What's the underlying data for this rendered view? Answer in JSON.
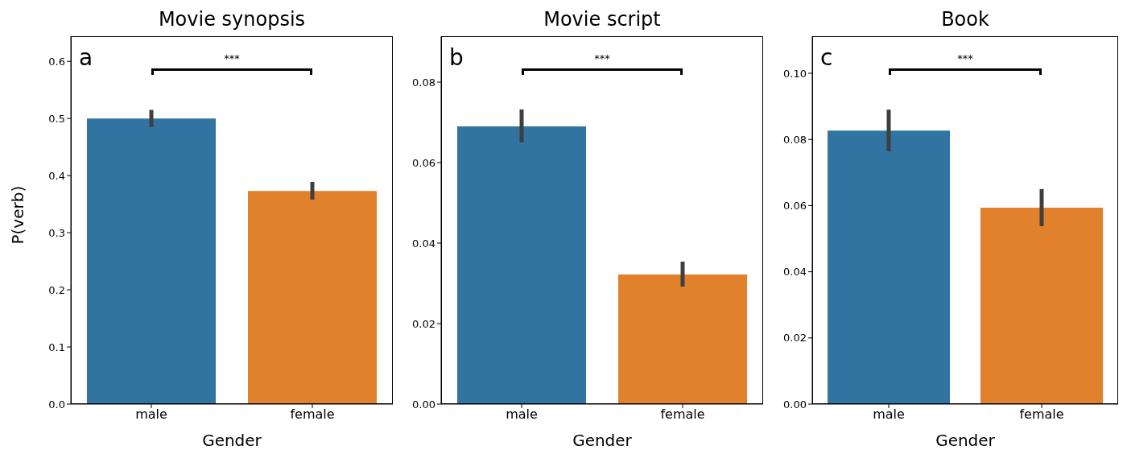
{
  "chart_data": [
    {
      "type": "bar",
      "title": "Movie synopsis",
      "xlabel": "Gender",
      "ylabel": "P(verb)",
      "categories": [
        "male",
        "female"
      ],
      "values": [
        0.5,
        0.373
      ],
      "colors": [
        "#3274a1",
        "#e1812c"
      ],
      "errors": [
        [
          0.485,
          0.515
        ],
        [
          0.358,
          0.389
        ]
      ],
      "ylim": [
        0,
        0.644
      ],
      "yticks": [
        {
          "value": 0,
          "label": "0.0"
        },
        {
          "value": 0.1,
          "label": "0.1"
        },
        {
          "value": 0.2,
          "label": "0.2"
        },
        {
          "value": 0.3,
          "label": "0.3"
        },
        {
          "value": 0.4,
          "label": "0.4"
        },
        {
          "value": 0.5,
          "label": "0.5"
        },
        {
          "value": 0.6,
          "label": "0.6"
        }
      ],
      "annotations": [
        "a",
        "***"
      ],
      "grid": false,
      "legend": false
    },
    {
      "type": "bar",
      "title": "Movie script",
      "xlabel": "Gender",
      "categories": [
        "male",
        "female"
      ],
      "values": [
        0.069,
        0.0322
      ],
      "colors": [
        "#3274a1",
        "#e1812c"
      ],
      "errors": [
        [
          0.065,
          0.0732
        ],
        [
          0.0292,
          0.0354
        ]
      ],
      "ylim": [
        0,
        0.0914
      ],
      "yticks": [
        {
          "value": 0,
          "label": "0.00"
        },
        {
          "value": 0.02,
          "label": "0.02"
        },
        {
          "value": 0.04,
          "label": "0.04"
        },
        {
          "value": 0.06,
          "label": "0.06"
        },
        {
          "value": 0.08,
          "label": "0.08"
        }
      ],
      "annotations": [
        "b",
        "***"
      ],
      "grid": false,
      "legend": false
    },
    {
      "type": "bar",
      "title": "Book",
      "xlabel": "Gender",
      "categories": [
        "male",
        "female"
      ],
      "values": [
        0.0827,
        0.0594
      ],
      "colors": [
        "#3274a1",
        "#e1812c"
      ],
      "errors": [
        [
          0.0764,
          0.089
        ],
        [
          0.0538,
          0.065
        ]
      ],
      "ylim": [
        0,
        0.1112
      ],
      "yticks": [
        {
          "value": 0,
          "label": "0.00"
        },
        {
          "value": 0.02,
          "label": "0.02"
        },
        {
          "value": 0.04,
          "label": "0.04"
        },
        {
          "value": 0.06,
          "label": "0.06"
        },
        {
          "value": 0.08,
          "label": "0.08"
        },
        {
          "value": 0.1,
          "label": "0.10"
        }
      ],
      "annotations": [
        "c",
        "***"
      ],
      "grid": false,
      "legend": false
    }
  ]
}
